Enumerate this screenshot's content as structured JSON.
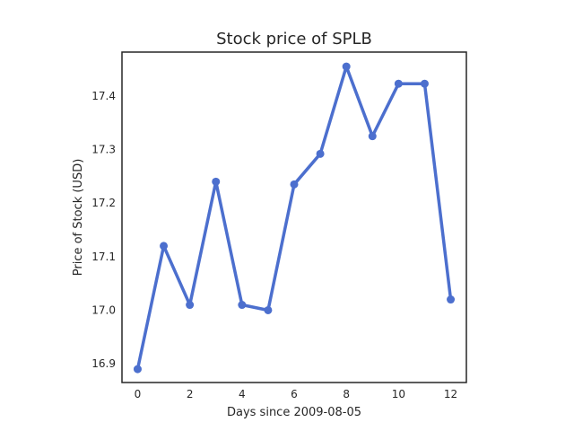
{
  "chart_data": {
    "type": "line",
    "title": "Stock price of SPLB",
    "xlabel": "Days since 2009-08-05",
    "ylabel": "Price of Stock (USD)",
    "x": [
      0,
      1,
      2,
      3,
      4,
      5,
      6,
      7,
      8,
      9,
      10,
      11,
      12
    ],
    "series": [
      {
        "values": [
          16.89,
          17.12,
          17.01,
          17.24,
          17.01,
          17.0,
          17.235,
          17.292,
          17.455,
          17.325,
          17.423,
          17.423,
          17.02
        ],
        "color": "#4c6fce"
      }
    ],
    "xlim": [
      -0.6,
      12.6
    ],
    "ylim": [
      16.865,
      17.482
    ],
    "xticks": [
      0,
      2,
      4,
      6,
      8,
      10,
      12
    ],
    "yticks": [
      16.9,
      17.0,
      17.1,
      17.2,
      17.3,
      17.4
    ],
    "xtick_labels": [
      "0",
      "2",
      "4",
      "6",
      "8",
      "10",
      "12"
    ],
    "ytick_labels": [
      "16.9",
      "17.0",
      "17.1",
      "17.2",
      "17.3",
      "17.4"
    ],
    "grid": false,
    "legend": false
  }
}
